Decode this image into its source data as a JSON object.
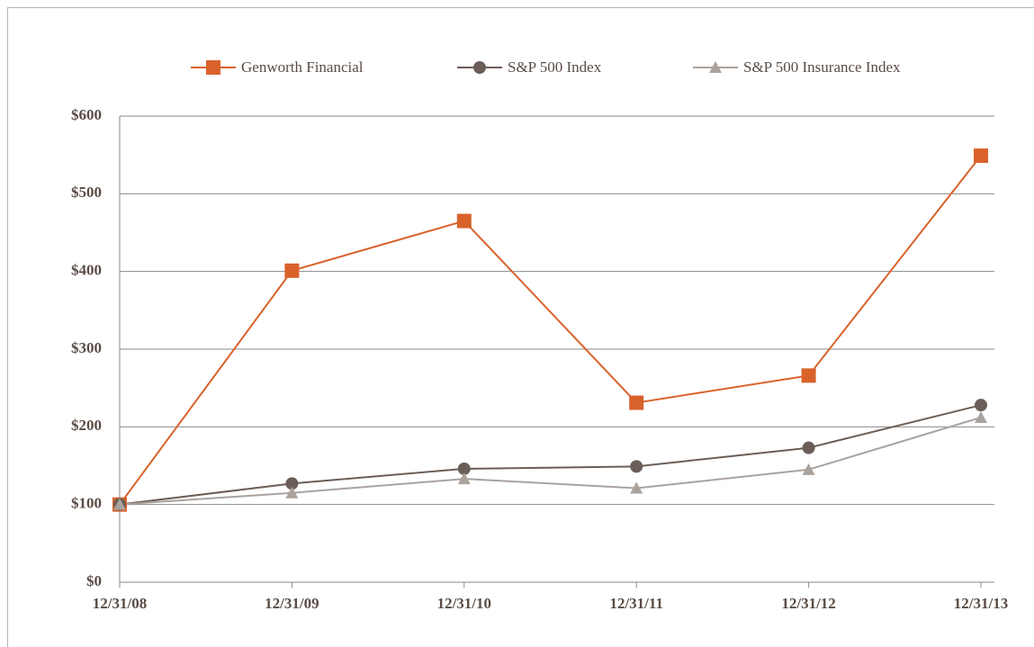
{
  "chart_data": {
    "type": "line",
    "categories": [
      "12/31/08",
      "12/31/09",
      "12/31/10",
      "12/31/11",
      "12/31/12",
      "12/31/13"
    ],
    "series": [
      {
        "name": "Genworth Financial",
        "color": "#d9622b",
        "marker": "square",
        "values": [
          100,
          401,
          465,
          231,
          266,
          549
        ]
      },
      {
        "name": "S&P 500 Index",
        "color": "#6b5e58",
        "marker": "circle",
        "values": [
          100,
          127,
          146,
          149,
          173,
          228
        ]
      },
      {
        "name": "S&P 500 Insurance Index",
        "color": "#aaa29d",
        "marker": "triangle",
        "values": [
          100,
          115,
          133,
          121,
          145,
          212
        ]
      }
    ],
    "ylim": [
      0,
      600
    ],
    "yticks": [
      {
        "value": 0,
        "label": "$0"
      },
      {
        "value": 100,
        "label": "$100"
      },
      {
        "value": 200,
        "label": "$200"
      },
      {
        "value": 300,
        "label": "$300"
      },
      {
        "value": 400,
        "label": "$400"
      },
      {
        "value": 500,
        "label": "$500"
      },
      {
        "value": 600,
        "label": "$600"
      }
    ],
    "grid": true,
    "legend": "top"
  }
}
